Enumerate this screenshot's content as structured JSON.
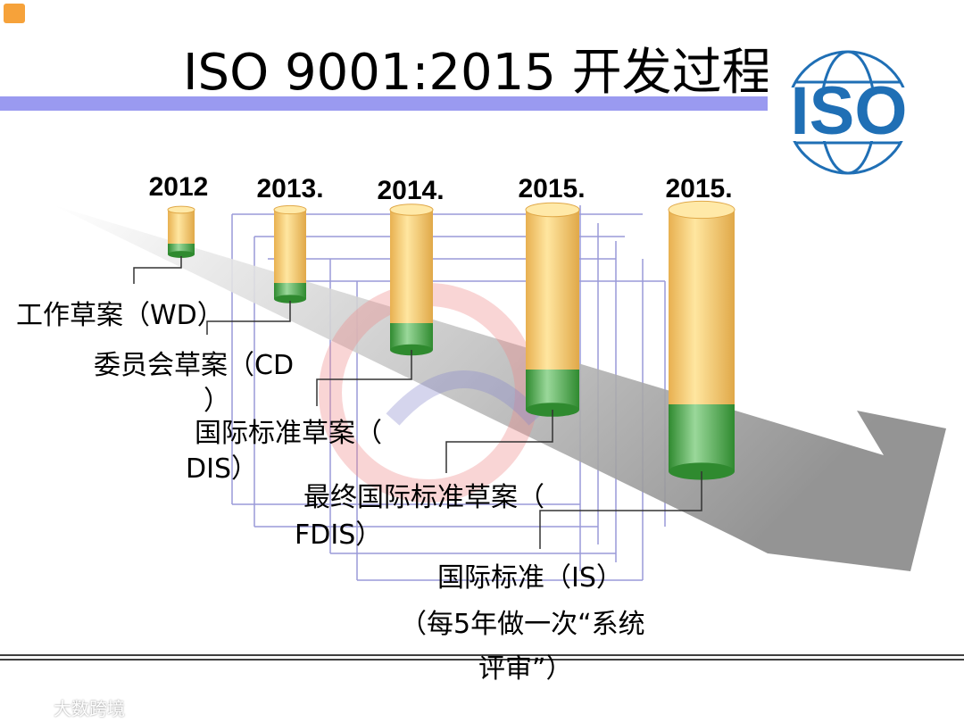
{
  "title": "ISO 9001:2015 开发过程",
  "logo": "ISO",
  "stages": [
    {
      "year": "2012",
      "lines": [
        "工作草案（WD）"
      ]
    },
    {
      "year": "2013.",
      "lines": [
        "委员会草案（CD",
        "）"
      ]
    },
    {
      "year": "2014.",
      "lines": [
        "国际标准草案（",
        "DIS）"
      ]
    },
    {
      "year": "2015.",
      "lines": [
        "最终国际标准草案（",
        "FDIS）"
      ]
    },
    {
      "year": "2015.",
      "lines": [
        "国际标准（IS）",
        "（每5年做一次“系统",
        "评审”）"
      ]
    }
  ],
  "watermark": "大数跨境"
}
